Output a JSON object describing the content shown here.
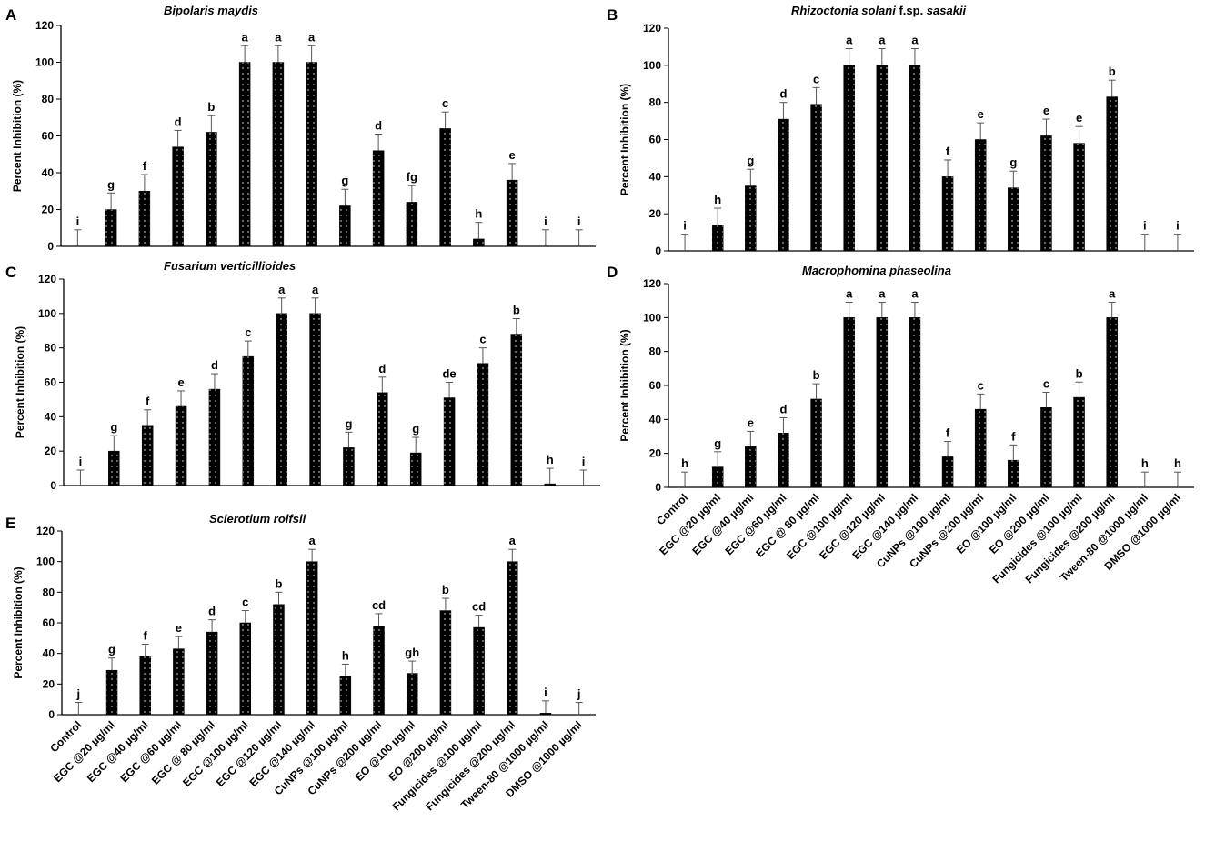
{
  "figure": {
    "panels": [
      "A",
      "B",
      "C",
      "D",
      "E"
    ]
  },
  "chart_data": [
    {
      "panel": "A",
      "type": "bar",
      "title": "Bipolaris maydis",
      "ylabel": "Percent Inhibition (%)",
      "xlabel": "",
      "ylim": [
        0,
        120
      ],
      "yticks": [
        0,
        20,
        40,
        60,
        80,
        100,
        120
      ],
      "categories": [
        "Control",
        "EGC @20 µg/ml",
        "EGC @40 µg/ml",
        "EGC @60 µg/ml",
        "EGC @ 80 µg/ml",
        "EGC @100 µg/ml",
        "EGC @120 µg/ml",
        "EGC @140 µg/ml",
        "CuNPs @100 µg/ml",
        "CuNPs @200 µg/ml",
        "EO @100 µg/ml",
        "EO @200 µg/ml",
        "Fungicides @100 µg/ml",
        "Fungicides @200 µg/ml",
        "Tween-80 @1000 µg/ml",
        "DMSO @1000 µg/ml"
      ],
      "values": [
        0,
        20,
        30,
        54,
        62,
        100,
        100,
        100,
        22,
        52,
        24,
        64,
        4,
        36,
        0,
        0
      ],
      "errors": [
        9,
        9,
        9,
        9,
        9,
        9,
        9,
        9,
        9,
        9,
        9,
        9,
        9,
        9,
        9,
        9
      ],
      "letters": [
        "i",
        "g",
        "f",
        "d",
        "b",
        "a",
        "a",
        "a",
        "g",
        "d",
        "fg",
        "c",
        "h",
        "e",
        "i",
        "i"
      ],
      "show_category_labels": false
    },
    {
      "panel": "B",
      "type": "bar",
      "title_parts": [
        {
          "text": "Rhizoctonia solani",
          "italic": true
        },
        {
          "text": " f.sp. ",
          "italic": false
        },
        {
          "text": "sasakii",
          "italic": true
        }
      ],
      "ylabel": "Percent Inhibition (%)",
      "xlabel": "",
      "ylim": [
        0,
        120
      ],
      "yticks": [
        0,
        20,
        40,
        60,
        80,
        100,
        120
      ],
      "categories": [
        "Control",
        "EGC @20 µg/ml",
        "EGC @40 µg/ml",
        "EGC @60 µg/ml",
        "EGC @ 80 µg/ml",
        "EGC @100 µg/ml",
        "EGC @120 µg/ml",
        "EGC @140 µg/ml",
        "CuNPs @100 µg/ml",
        "CuNPs @200 µg/ml",
        "EO @100 µg/ml",
        "EO @200 µg/ml",
        "Fungicides @100 µg/ml",
        "Fungicides @200 µg/ml",
        "Tween-80 @1000 µg/ml",
        "DMSO @1000 µg/ml"
      ],
      "values": [
        0,
        14,
        35,
        71,
        79,
        100,
        100,
        100,
        40,
        60,
        34,
        62,
        58,
        83,
        0,
        0
      ],
      "errors": [
        9,
        9,
        9,
        9,
        9,
        9,
        9,
        9,
        9,
        9,
        9,
        9,
        9,
        9,
        9,
        9
      ],
      "letters": [
        "i",
        "h",
        "g",
        "d",
        "c",
        "a",
        "a",
        "a",
        "f",
        "e",
        "g",
        "e",
        "e",
        "b",
        "i",
        "i"
      ],
      "show_category_labels": false
    },
    {
      "panel": "C",
      "type": "bar",
      "title": "Fusarium verticillioides",
      "ylabel": "Percent Inhibition (%)",
      "xlabel": "",
      "ylim": [
        0,
        120
      ],
      "yticks": [
        0,
        20,
        40,
        60,
        80,
        100,
        120
      ],
      "categories": [
        "Control",
        "EGC @20 µg/ml",
        "EGC @40 µg/ml",
        "EGC @60 µg/ml",
        "EGC @ 80 µg/ml",
        "EGC @100 µg/ml",
        "EGC @120 µg/ml",
        "EGC @140 µg/ml",
        "CuNPs @100 µg/ml",
        "CuNPs @200 µg/ml",
        "EO @100 µg/ml",
        "EO @200 µg/ml",
        "Fungicides @100 µg/ml",
        "Fungicides @200 µg/ml",
        "Tween-80 @1000 µg/ml",
        "DMSO @1000 µg/ml"
      ],
      "values": [
        0,
        20,
        35,
        46,
        56,
        75,
        100,
        100,
        22,
        54,
        19,
        51,
        71,
        88,
        1,
        0
      ],
      "errors": [
        9,
        9,
        9,
        9,
        9,
        9,
        9,
        9,
        9,
        9,
        9,
        9,
        9,
        9,
        9,
        9
      ],
      "letters": [
        "i",
        "g",
        "f",
        "e",
        "d",
        "c",
        "a",
        "a",
        "g",
        "d",
        "g",
        "de",
        "c",
        "b",
        "h",
        "i"
      ],
      "show_category_labels": false
    },
    {
      "panel": "D",
      "type": "bar",
      "title": "Macrophomina phaseolina",
      "ylabel": "Percent Inhibition (%)",
      "xlabel": "",
      "ylim": [
        0,
        120
      ],
      "yticks": [
        0,
        20,
        40,
        60,
        80,
        100,
        120
      ],
      "categories": [
        "Control",
        "EGC @20 µg/ml",
        "EGC @40 µg/ml",
        "EGC @60 µg/ml",
        "EGC @ 80 µg/ml",
        "EGC @100 µg/ml",
        "EGC @120 µg/ml",
        "EGC @140 µg/ml",
        "CuNPs @100 µg/ml",
        "CuNPs @200 µg/ml",
        "EO @100 µg/ml",
        "EO @200 µg/ml",
        "Fungicides @100 µg/ml",
        "Fungicides @200 µg/ml",
        "Tween-80 @1000 µg/ml",
        "DMSO @1000 µg/ml"
      ],
      "values": [
        0,
        12,
        24,
        32,
        52,
        100,
        100,
        100,
        18,
        46,
        16,
        47,
        53,
        100,
        0,
        0
      ],
      "errors": [
        9,
        9,
        9,
        9,
        9,
        9,
        9,
        9,
        9,
        9,
        9,
        9,
        9,
        9,
        9,
        9
      ],
      "letters": [
        "h",
        "g",
        "e",
        "d",
        "b",
        "a",
        "a",
        "a",
        "f",
        "c",
        "f",
        "c",
        "b",
        "a",
        "h",
        "h"
      ],
      "show_category_labels": true
    },
    {
      "panel": "E",
      "type": "bar",
      "title": "Sclerotium rolfsii",
      "ylabel": "Percent Inhibition (%)",
      "xlabel": "",
      "ylim": [
        0,
        120
      ],
      "yticks": [
        0,
        20,
        40,
        60,
        80,
        100,
        120
      ],
      "categories": [
        "Control",
        "EGC @20 µg/ml",
        "EGC @40 µg/ml",
        "EGC @60 µg/ml",
        "EGC @ 80 µg/ml",
        "EGC @100 µg/ml",
        "EGC @120 µg/ml",
        "EGC @140 µg/ml",
        "CuNPs @100 µg/ml",
        "CuNPs @200 µg/ml",
        "EO @100 µg/ml",
        "EO @200 µg/ml",
        "Fungicides @100 µg/ml",
        "Fungicides @200 µg/ml",
        "Tween-80 @1000 µg/ml",
        "DMSO @1000 µg/ml"
      ],
      "values": [
        0,
        29,
        38,
        43,
        54,
        60,
        72,
        100,
        25,
        58,
        27,
        68,
        57,
        100,
        1,
        0
      ],
      "errors": [
        8,
        8,
        8,
        8,
        8,
        8,
        8,
        8,
        8,
        8,
        8,
        8,
        8,
        8,
        8,
        8
      ],
      "letters": [
        "j",
        "g",
        "f",
        "e",
        "d",
        "c",
        "b",
        "a",
        "h",
        "cd",
        "gh",
        "b",
        "cd",
        "a",
        "i",
        "j"
      ],
      "show_category_labels": true
    }
  ]
}
